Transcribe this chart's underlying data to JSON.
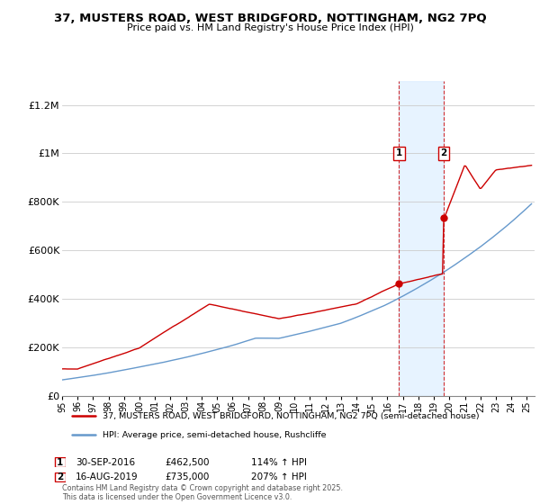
{
  "title": "37, MUSTERS ROAD, WEST BRIDGFORD, NOTTINGHAM, NG2 7PQ",
  "subtitle": "Price paid vs. HM Land Registry's House Price Index (HPI)",
  "legend_label_red": "37, MUSTERS ROAD, WEST BRIDGFORD, NOTTINGHAM, NG2 7PQ (semi-detached house)",
  "legend_label_blue": "HPI: Average price, semi-detached house, Rushcliffe",
  "annotation1_date": "30-SEP-2016",
  "annotation1_price": "£462,500",
  "annotation1_hpi": "114% ↑ HPI",
  "annotation1_year": 2016.75,
  "annotation1_value": 462500,
  "annotation2_date": "16-AUG-2019",
  "annotation2_price": "£735,000",
  "annotation2_hpi": "207% ↑ HPI",
  "annotation2_year": 2019.62,
  "annotation2_value": 735000,
  "ylim": [
    0,
    1300000
  ],
  "yticks": [
    0,
    200000,
    400000,
    600000,
    800000,
    1000000,
    1200000
  ],
  "ytick_labels": [
    "£0",
    "£200K",
    "£400K",
    "£600K",
    "£800K",
    "£1M",
    "£1.2M"
  ],
  "xlim_start": 1995,
  "xlim_end": 2025.5,
  "footer": "Contains HM Land Registry data © Crown copyright and database right 2025.\nThis data is licensed under the Open Government Licence v3.0.",
  "red_color": "#cc0000",
  "blue_color": "#6699cc",
  "shade_color": "#ddeeff",
  "grid_color": "#cccccc"
}
